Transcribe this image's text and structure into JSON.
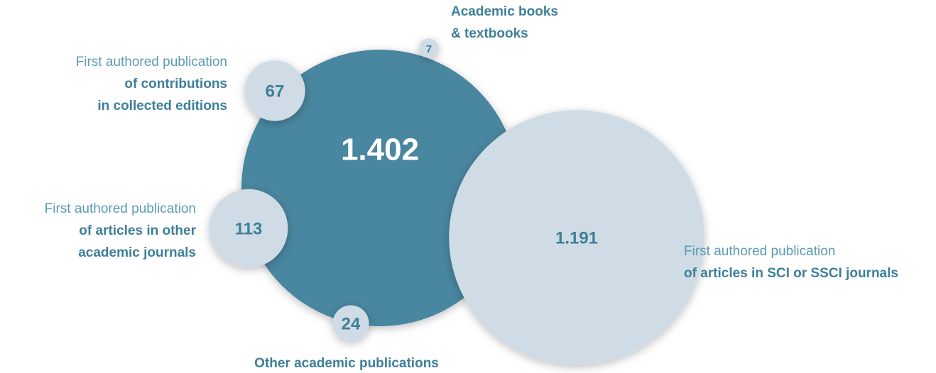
{
  "chart_data": {
    "type": "bubble",
    "total": 1402,
    "total_label": "1.402",
    "total_color": "#4a86a0",
    "color": "#cfdce5",
    "values": [
      67,
      113,
      24,
      7,
      1191
    ],
    "value_labels": [
      "67",
      "113",
      "24",
      "7",
      "1.191"
    ],
    "labels": [
      {
        "prefix": "First authored publication",
        "lines": [
          "of contributions",
          "in collected editions"
        ]
      },
      {
        "prefix": "First authored publication",
        "lines": [
          "of articles in other",
          "academic journals"
        ]
      },
      {
        "lines": [
          "Other academic publications"
        ]
      },
      {
        "lines": [
          "Academic books",
          "& textbooks"
        ]
      },
      {
        "prefix": "First authored publication",
        "lines": [
          "of articles in SCI or SSCI journals"
        ]
      }
    ]
  }
}
